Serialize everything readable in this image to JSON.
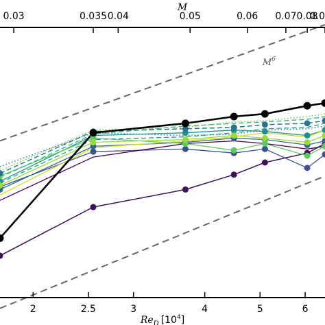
{
  "chart_data": {
    "type": "line",
    "title": "",
    "xlabel_bottom": "Re",
    "xlabel_bottom_sub": "D",
    "xlabel_bottom_unit": "[10",
    "xlabel_bottom_unit_exp": "4",
    "xlabel_bottom_close": "]",
    "xlabel_top": "M",
    "xlim": [
      1.75,
      6.5
    ],
    "ylim": [
      0,
      100
    ],
    "bottom_ticks": [
      {
        "value": 2,
        "label": "2"
      },
      {
        "value": 2.5,
        "label": "2.5"
      },
      {
        "value": 3,
        "label": "3"
      },
      {
        "value": 4,
        "label": "4"
      },
      {
        "value": 5,
        "label": "5"
      },
      {
        "value": 6,
        "label": "6"
      }
    ],
    "top_ticks": [
      {
        "value": 1.85,
        "label": "0.03"
      },
      {
        "value": 2.55,
        "label": "0.035"
      },
      {
        "value": 2.82,
        "label": "0.04"
      },
      {
        "value": 3.77,
        "label": "0.05"
      },
      {
        "value": 4.75,
        "label": "0.06"
      },
      {
        "value": 5.55,
        "label": "0.07"
      },
      {
        "value": 6.05,
        "label": "0.08"
      },
      {
        "value": 6.5,
        "label": "0.0"
      }
    ],
    "reference_lines": [
      {
        "label": "M",
        "label_exp": "6",
        "points": [
          [
            1.75,
            58
          ],
          [
            6.5,
            101
          ]
        ],
        "label_at": [
          5.05,
          86
        ],
        "color": "#666666"
      },
      {
        "label": "",
        "points": [
          [
            1.75,
            -4
          ],
          [
            6.5,
            45
          ]
        ],
        "color": "#666666"
      }
    ],
    "series": [
      {
        "color": "#000000",
        "style": "solid",
        "width": 2.6,
        "marker": true,
        "x": [
          1.75,
          2.55,
          3.7,
          4.5,
          5.1,
          6.05,
          6.5
        ],
        "y": [
          22,
          61,
          64.5,
          67,
          68,
          71,
          72
        ]
      },
      {
        "color": "#3f0f57",
        "style": "solid",
        "width": 1.5,
        "marker": true,
        "x": [
          1.75,
          2.55,
          3.7,
          4.5,
          5.1,
          6.05,
          6.5
        ],
        "y": [
          15.5,
          33.5,
          40,
          45.5,
          50,
          53.5,
          57
        ]
      },
      {
        "color": "#3b528b",
        "style": "solid",
        "width": 1.3,
        "marker": true,
        "x": [
          1.75,
          2.55,
          3.7,
          4.5,
          5.1,
          6.05,
          6.5
        ],
        "y": [
          41,
          54,
          55,
          53.5,
          55,
          48,
          53
        ]
      },
      {
        "color": "#31688e",
        "style": "solid",
        "width": 1.3,
        "marker": true,
        "x": [
          1.75,
          2.55,
          3.7,
          4.5,
          5.1,
          6.05,
          6.5
        ],
        "y": [
          40,
          56,
          57.5,
          59,
          58.5,
          56.5,
          58
        ]
      },
      {
        "color": "#21908c",
        "style": "solid",
        "width": 1.3,
        "marker": true,
        "x": [
          1.75,
          2.55,
          3.7,
          4.5,
          5.1,
          6.05,
          6.5
        ],
        "y": [
          43,
          60,
          61,
          62,
          61.5,
          60,
          62
        ]
      },
      {
        "color": "#5ec962",
        "style": "solid",
        "width": 1.3,
        "marker": true,
        "x": [
          1.75,
          2.55,
          3.7,
          4.5,
          5.1,
          6.05,
          6.5
        ],
        "y": [
          45,
          59,
          57,
          54.5,
          57,
          52.5,
          56
        ]
      },
      {
        "color": "#9bd93c",
        "style": "solid",
        "width": 1.3,
        "marker": true,
        "x": [
          1.75,
          2.55,
          3.7,
          4.5,
          5.1,
          6.05,
          6.5
        ],
        "y": [
          41.5,
          57.5,
          58.5,
          60,
          59,
          57.5,
          60
        ]
      },
      {
        "color": "#c8e020",
        "style": "solid",
        "width": 1.3,
        "marker": false,
        "x": [
          1.75,
          2.55,
          3.7,
          4.5,
          5.1,
          6.05,
          6.5
        ],
        "y": [
          38,
          55.5,
          58,
          59.5,
          61,
          59.5,
          62
        ]
      },
      {
        "color": "#440154",
        "style": "solid",
        "width": 1.3,
        "marker": false,
        "x": [
          1.75,
          2.55,
          3.7,
          4.5,
          5.1,
          6.05,
          6.5
        ],
        "y": [
          36,
          52,
          57,
          58,
          57,
          55,
          56
        ]
      },
      {
        "color": "#2c728e",
        "style": "dashed",
        "width": 1.5,
        "marker": true,
        "x": [
          1.75,
          2.55,
          3.7,
          4.5,
          5.1,
          6.05,
          6.5
        ],
        "y": [
          46,
          61.5,
          62.5,
          63,
          64,
          64.5,
          65.5
        ]
      },
      {
        "color": "#35b779",
        "style": "dashed",
        "width": 1.4,
        "marker": false,
        "x": [
          1.75,
          2.55,
          3.7,
          4.5,
          5.1,
          6.05,
          6.5
        ],
        "y": [
          44.5,
          60.5,
          63.5,
          64.5,
          65,
          66,
          67
        ]
      },
      {
        "color": "#7ad151",
        "style": "dotted",
        "width": 1.6,
        "marker": false,
        "x": [
          1.75,
          2.55,
          3.7,
          4.5,
          5.1,
          6.05,
          6.5
        ],
        "y": [
          47,
          62,
          63,
          65,
          65.5,
          67,
          68
        ]
      },
      {
        "color": "#26828e",
        "style": "dotted",
        "width": 1.6,
        "marker": false,
        "x": [
          1.75,
          2.55,
          3.7,
          4.5,
          5.1,
          6.05,
          6.5
        ],
        "y": [
          48.5,
          61,
          60,
          60.5,
          62,
          62.5,
          63.5
        ]
      },
      {
        "color": "#1f9e89",
        "style": "dashed",
        "width": 1.3,
        "marker": false,
        "x": [
          1.75,
          2.55,
          3.7,
          4.5,
          5.1,
          6.05,
          6.5
        ],
        "y": [
          42.5,
          58.5,
          59.5,
          61,
          62.5,
          63,
          64.5
        ]
      }
    ]
  }
}
